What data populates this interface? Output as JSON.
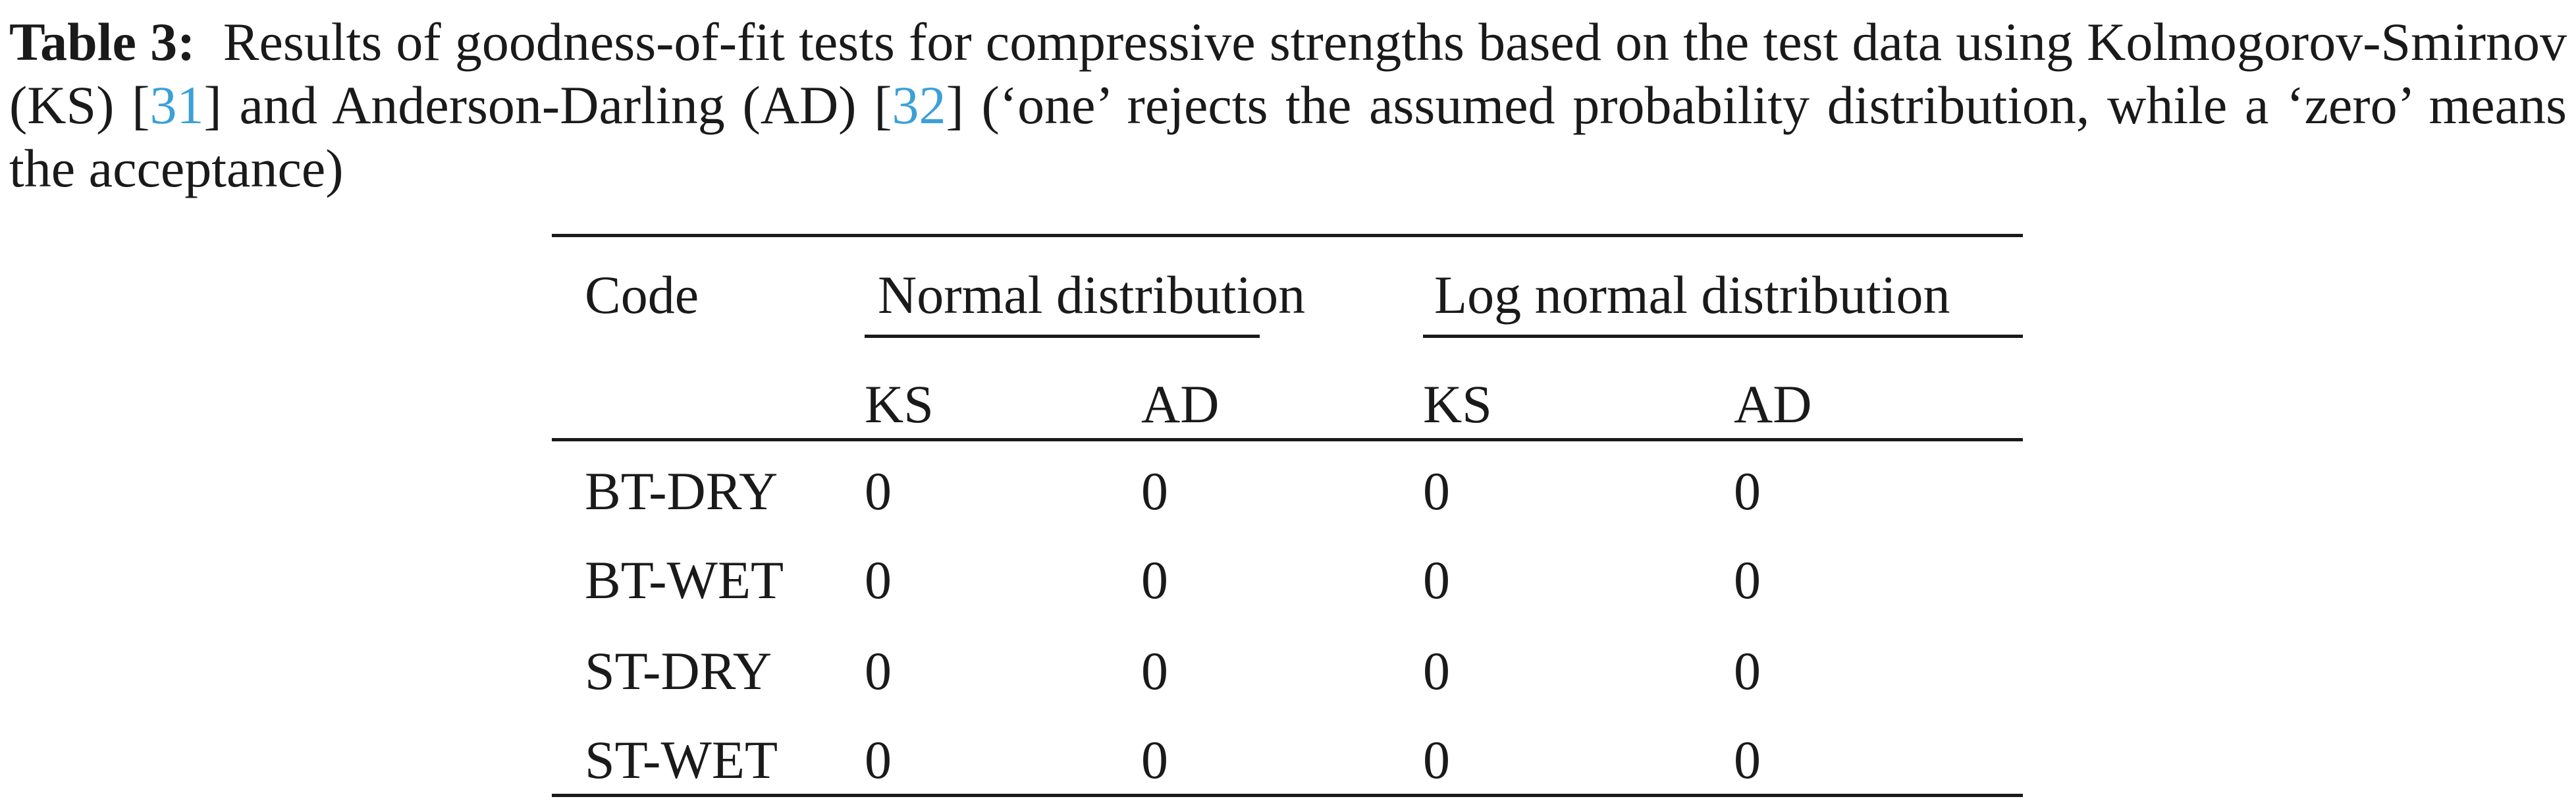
{
  "caption": {
    "label": "Table 3:",
    "text_before_ref1": "Results of goodness-of-fit tests for compressive strengths based on the test data using Kolmogorov-Smirnov (KS) [",
    "ref1": "31",
    "text_between_refs": "] and Anderson-Darling (AD) [",
    "ref2": "32",
    "text_after_ref2": "] (‘one’ rejects the assumed probability distribution, while a ‘zero’ means the acceptance)"
  },
  "table": {
    "code_header": "Code",
    "groups": [
      "Normal distribution",
      "Log normal distribution"
    ],
    "subheaders": [
      "KS",
      "AD",
      "KS",
      "AD"
    ],
    "rows": [
      {
        "code": "BT-DRY",
        "values": [
          "0",
          "0",
          "0",
          "0"
        ]
      },
      {
        "code": "BT-WET",
        "values": [
          "0",
          "0",
          "0",
          "0"
        ]
      },
      {
        "code": "ST-DRY",
        "values": [
          "0",
          "0",
          "0",
          "0"
        ]
      },
      {
        "code": "ST-WET",
        "values": [
          "0",
          "0",
          "0",
          "0"
        ]
      }
    ]
  },
  "colors": {
    "text": "#1a1a1a",
    "citation_link": "#3aa0d8"
  }
}
